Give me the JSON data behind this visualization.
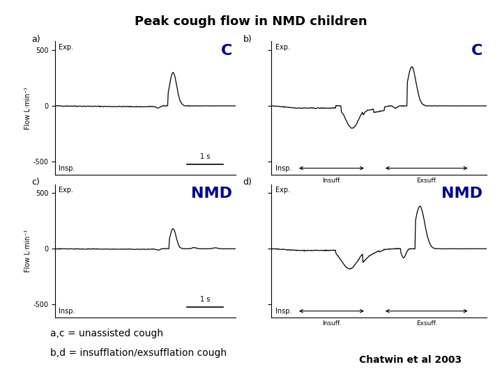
{
  "title": "Peak cough flow in NMD children",
  "title_fontsize": 13,
  "title_fontweight": "bold",
  "label_C": "C",
  "label_NMD": "NMD",
  "label_color": "#00008B",
  "label_fontsize": 16,
  "label_fontweight": "bold",
  "caption_line1": "a,c = unassisted cough",
  "caption_line2": "b,d = insufflation/exsufflation cough",
  "citation": "Chatwin et al 2003",
  "citation_fontweight": "bold",
  "caption_fontsize": 10,
  "citation_fontsize": 10,
  "ylabel": "Flow L·min⁻¹",
  "exp_text": "Exp.",
  "insp_text": "Insp.",
  "scale_text": "1 s",
  "insuff_text": "Insuff.",
  "exsuff_text": "Exsuff.",
  "background_color": "#ffffff",
  "line_color": "#000000",
  "yaxis_ticks": [
    -500,
    0,
    500
  ],
  "yaxis_range": [
    -620,
    580
  ]
}
